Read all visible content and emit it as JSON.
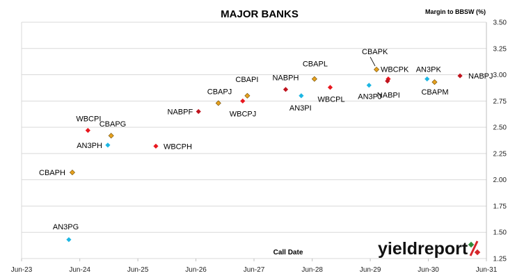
{
  "chart_data": {
    "type": "scatter",
    "title": "MAJOR BANKS",
    "ylabel": "Margin to BBSW (%)",
    "xlabel": "Call Date",
    "ylim": [
      1.25,
      3.5
    ],
    "yticks": [
      "1.25",
      "1.50",
      "1.75",
      "2.00",
      "2.25",
      "2.50",
      "2.75",
      "3.00",
      "3.25",
      "3.50"
    ],
    "xlim": [
      "2023-06",
      "2031-06"
    ],
    "xticks": [
      "Jun-23",
      "Jun-24",
      "Jun-25",
      "Jun-26",
      "Jun-27",
      "Jun-28",
      "Jun-29",
      "Jun-30",
      "Jun-31"
    ],
    "grid": true,
    "logo": "yieldreport",
    "colors": {
      "CBA": "#e7a11f",
      "ANZ": "#1cb6e3",
      "WBC": "#e8171e",
      "NAB": "#c0131d",
      "logo_green": "#2f8a3b",
      "logo_red": "#d6262b"
    },
    "series": [
      {
        "issuer": "CBA",
        "marker": "diamond",
        "points": [
          {
            "label": "CBAPH",
            "x": "2024-04-15",
            "y": 2.07
          },
          {
            "label": "CBAPG",
            "x": "2024-12-15",
            "y": 2.42
          },
          {
            "label": "CBAPJ",
            "x": "2026-10-20",
            "y": 2.73
          },
          {
            "label": "CBAPI",
            "x": "2027-04-20",
            "y": 2.8
          },
          {
            "label": "CBAPL",
            "x": "2028-06-15",
            "y": 2.96
          },
          {
            "label": "CBAPK",
            "x": "2029-07-10",
            "y": 3.05
          },
          {
            "label": "CBAPM",
            "x": "2030-07-10",
            "y": 2.93
          }
        ]
      },
      {
        "issuer": "ANZ",
        "marker": "diamond",
        "points": [
          {
            "label": "AN3PG",
            "x": "2024-03-24",
            "y": 1.43
          },
          {
            "label": "AN3PH",
            "x": "2024-11-24",
            "y": 2.33
          },
          {
            "label": "AN3PI",
            "x": "2028-03-24",
            "y": 2.8
          },
          {
            "label": "AN3PJ",
            "x": "2029-05-24",
            "y": 2.9
          },
          {
            "label": "AN3PK",
            "x": "2030-05-24",
            "y": 2.96
          }
        ]
      },
      {
        "issuer": "WBC",
        "marker": "diamond",
        "points": [
          {
            "label": "WBCPI",
            "x": "2024-07-22",
            "y": 2.47
          },
          {
            "label": "WBCPH",
            "x": "2025-09-22",
            "y": 2.32
          },
          {
            "label": "WBCPJ",
            "x": "2027-03-22",
            "y": 2.75
          },
          {
            "label": "WBCPL",
            "x": "2028-09-22",
            "y": 2.88
          },
          {
            "label": "WBCPK",
            "x": "2029-09-22",
            "y": 2.96
          }
        ]
      },
      {
        "issuer": "NAB",
        "marker": "diamond",
        "points": [
          {
            "label": "NABPF",
            "x": "2026-06-17",
            "y": 2.65
          },
          {
            "label": "NABPH",
            "x": "2027-12-17",
            "y": 2.86
          },
          {
            "label": "NABPI",
            "x": "2029-09-17",
            "y": 2.94
          },
          {
            "label": "NABPJ",
            "x": "2030-12-17",
            "y": 2.99
          }
        ]
      }
    ]
  }
}
